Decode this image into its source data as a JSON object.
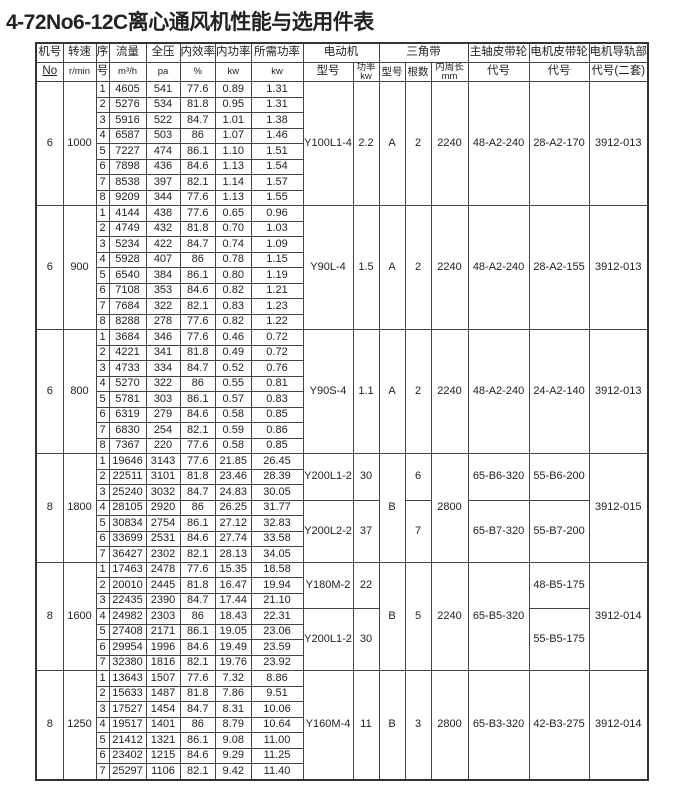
{
  "title": "4-72No6-12C离心通风机性能与选用件表",
  "headers": {
    "fan_no": [
      "机号",
      "No"
    ],
    "speed": [
      "转速",
      "r/min"
    ],
    "seq": [
      "序",
      "号"
    ],
    "flow": [
      "流量",
      "m³/h"
    ],
    "pressure": [
      "全压",
      "pa"
    ],
    "eff": [
      "内效率",
      "%"
    ],
    "power": [
      "内功率",
      "kw"
    ],
    "req": [
      "所需功率",
      "kw"
    ],
    "motor": "电动机",
    "motor_model": "型号",
    "motor_kw": [
      "功率",
      "kw"
    ],
    "vbelt": "三角带",
    "belt_type": "型号",
    "belt_count": "根数",
    "belt_length": [
      "内周长",
      "mm"
    ],
    "main_pulley": [
      "主轴皮带轮",
      "代号"
    ],
    "motor_pulley": [
      "电机皮带轮",
      "代号"
    ],
    "rail": [
      "电机导轨部",
      "代号(二套)"
    ]
  },
  "groups": [
    {
      "fan_no": "6",
      "speed": "1000",
      "rows": [
        [
          "1",
          "4605",
          "541",
          "77.6",
          "0.89",
          "1.31"
        ],
        [
          "2",
          "5276",
          "534",
          "81.8",
          "0.95",
          "1.31"
        ],
        [
          "3",
          "5916",
          "522",
          "84.7",
          "1.01",
          "1.38"
        ],
        [
          "4",
          "6587",
          "503",
          "86",
          "1.07",
          "1.46"
        ],
        [
          "5",
          "7227",
          "474",
          "86.1",
          "1.10",
          "1.51"
        ],
        [
          "6",
          "7898",
          "436",
          "84.6",
          "1.13",
          "1.54"
        ],
        [
          "7",
          "8538",
          "397",
          "82.1",
          "1.14",
          "1.57"
        ],
        [
          "8",
          "9209",
          "344",
          "77.6",
          "1.13",
          "1.55"
        ]
      ],
      "right": {
        "motor_model": [
          {
            "v": "Y100L1-4",
            "span": 8
          }
        ],
        "motor_kw": [
          {
            "v": "2.2",
            "span": 8
          }
        ],
        "belt_type": [
          {
            "v": "A",
            "span": 8
          }
        ],
        "belt_count": [
          {
            "v": "2",
            "span": 8
          }
        ],
        "belt_length": [
          {
            "v": "2240",
            "span": 8
          }
        ],
        "main_pulley": [
          {
            "v": "48-A2-240",
            "span": 8
          }
        ],
        "motor_pulley": [
          {
            "v": "28-A2-170",
            "span": 8
          }
        ],
        "rail": [
          {
            "v": "3912-013",
            "span": 8
          }
        ]
      }
    },
    {
      "fan_no": "6",
      "speed": "900",
      "rows": [
        [
          "1",
          "4144",
          "438",
          "77.6",
          "0.65",
          "0.96"
        ],
        [
          "2",
          "4749",
          "432",
          "81.8",
          "0.70",
          "1.03"
        ],
        [
          "3",
          "5234",
          "422",
          "84.7",
          "0.74",
          "1.09"
        ],
        [
          "4",
          "5928",
          "407",
          "86",
          "0.78",
          "1.15"
        ],
        [
          "5",
          "6540",
          "384",
          "86.1",
          "0.80",
          "1.19"
        ],
        [
          "6",
          "7108",
          "353",
          "84.6",
          "0.82",
          "1.21"
        ],
        [
          "7",
          "7684",
          "322",
          "82.1",
          "0.83",
          "1.23"
        ],
        [
          "8",
          "8288",
          "278",
          "77.6",
          "0.82",
          "1.22"
        ]
      ],
      "right": {
        "motor_model": [
          {
            "v": "Y90L-4",
            "span": 8
          }
        ],
        "motor_kw": [
          {
            "v": "1.5",
            "span": 8
          }
        ],
        "belt_type": [
          {
            "v": "A",
            "span": 8
          }
        ],
        "belt_count": [
          {
            "v": "2",
            "span": 8
          }
        ],
        "belt_length": [
          {
            "v": "2240",
            "span": 8
          }
        ],
        "main_pulley": [
          {
            "v": "48-A2-240",
            "span": 8
          }
        ],
        "motor_pulley": [
          {
            "v": "28-A2-155",
            "span": 8
          }
        ],
        "rail": [
          {
            "v": "3912-013",
            "span": 8
          }
        ]
      }
    },
    {
      "fan_no": "6",
      "speed": "800",
      "rows": [
        [
          "1",
          "3684",
          "346",
          "77.6",
          "0.46",
          "0.72"
        ],
        [
          "2",
          "4221",
          "341",
          "81.8",
          "0.49",
          "0.72"
        ],
        [
          "3",
          "4733",
          "334",
          "84.7",
          "0.52",
          "0.76"
        ],
        [
          "4",
          "5270",
          "322",
          "86",
          "0.55",
          "0.81"
        ],
        [
          "5",
          "5781",
          "303",
          "86.1",
          "0.57",
          "0.83"
        ],
        [
          "6",
          "6319",
          "279",
          "84.6",
          "0.58",
          "0.85"
        ],
        [
          "7",
          "6830",
          "254",
          "82.1",
          "0.59",
          "0.86"
        ],
        [
          "8",
          "7367",
          "220",
          "77.6",
          "0.58",
          "0.85"
        ]
      ],
      "right": {
        "motor_model": [
          {
            "v": "Y90S-4",
            "span": 8
          }
        ],
        "motor_kw": [
          {
            "v": "1.1",
            "span": 8
          }
        ],
        "belt_type": [
          {
            "v": "A",
            "span": 8
          }
        ],
        "belt_count": [
          {
            "v": "2",
            "span": 8
          }
        ],
        "belt_length": [
          {
            "v": "2240",
            "span": 8
          }
        ],
        "main_pulley": [
          {
            "v": "48-A2-240",
            "span": 8
          }
        ],
        "motor_pulley": [
          {
            "v": "24-A2-140",
            "span": 8
          }
        ],
        "rail": [
          {
            "v": "3912-013",
            "span": 8
          }
        ]
      }
    },
    {
      "fan_no": "8",
      "speed": "1800",
      "rows": [
        [
          "1",
          "19646",
          "3143",
          "77.6",
          "21.85",
          "26.45"
        ],
        [
          "2",
          "22511",
          "3101",
          "81.8",
          "23.46",
          "28.39"
        ],
        [
          "3",
          "25240",
          "3032",
          "84.7",
          "24.83",
          "30.05"
        ],
        [
          "4",
          "28105",
          "2920",
          "86",
          "26.25",
          "31.77"
        ],
        [
          "5",
          "30834",
          "2754",
          "86.1",
          "27.12",
          "32.83"
        ],
        [
          "6",
          "33699",
          "2531",
          "84.6",
          "27.74",
          "33.58"
        ],
        [
          "7",
          "36427",
          "2302",
          "82.1",
          "28.13",
          "34.05"
        ]
      ],
      "right": {
        "motor_model": [
          {
            "v": "Y200L1-2",
            "span": 3
          },
          {
            "v": "Y200L2-2",
            "span": 4
          }
        ],
        "motor_kw": [
          {
            "v": "30",
            "span": 3
          },
          {
            "v": "37",
            "span": 4
          }
        ],
        "belt_type": [
          {
            "v": "B",
            "span": 7
          }
        ],
        "belt_count": [
          {
            "v": "6",
            "span": 3
          },
          {
            "v": "7",
            "span": 4
          }
        ],
        "belt_length": [
          {
            "v": "2800",
            "span": 7
          }
        ],
        "main_pulley": [
          {
            "v": "65-B6-320",
            "span": 3
          },
          {
            "v": "65-B7-320",
            "span": 4
          }
        ],
        "motor_pulley": [
          {
            "v": "55-B6-200",
            "span": 3
          },
          {
            "v": "55-B7-200",
            "span": 4
          }
        ],
        "rail": [
          {
            "v": "3912-015",
            "span": 7
          }
        ]
      }
    },
    {
      "fan_no": "8",
      "speed": "1600",
      "rows": [
        [
          "1",
          "17463",
          "2478",
          "77.6",
          "15.35",
          "18.58"
        ],
        [
          "2",
          "20010",
          "2445",
          "81.8",
          "16.47",
          "19.94"
        ],
        [
          "3",
          "22435",
          "2390",
          "84.7",
          "17.44",
          "21.10"
        ],
        [
          "4",
          "24982",
          "2303",
          "86",
          "18.43",
          "22.31"
        ],
        [
          "5",
          "27408",
          "2171",
          "86.1",
          "19.05",
          "23.06"
        ],
        [
          "6",
          "29954",
          "1996",
          "84.6",
          "19.49",
          "23.59"
        ],
        [
          "7",
          "32380",
          "1816",
          "82.1",
          "19.76",
          "23.92"
        ]
      ],
      "right": {
        "motor_model": [
          {
            "v": "Y180M-2",
            "span": 3
          },
          {
            "v": "Y200L1-2",
            "span": 4
          }
        ],
        "motor_kw": [
          {
            "v": "22",
            "span": 3
          },
          {
            "v": "30",
            "span": 4
          }
        ],
        "belt_type": [
          {
            "v": "B",
            "span": 7
          }
        ],
        "belt_count": [
          {
            "v": "5",
            "span": 7
          }
        ],
        "belt_length": [
          {
            "v": "2240",
            "span": 7
          }
        ],
        "main_pulley": [
          {
            "v": "65-B5-320",
            "span": 7
          }
        ],
        "motor_pulley": [
          {
            "v": "48-B5-175",
            "span": 3
          },
          {
            "v": "55-B5-175",
            "span": 4
          }
        ],
        "rail": [
          {
            "v": "3912-014",
            "span": 7
          }
        ]
      }
    },
    {
      "fan_no": "8",
      "speed": "1250",
      "rows": [
        [
          "1",
          "13643",
          "1507",
          "77.6",
          "7.32",
          "8.86"
        ],
        [
          "2",
          "15633",
          "1487",
          "81.8",
          "7.86",
          "9.51"
        ],
        [
          "3",
          "17527",
          "1454",
          "84.7",
          "8.31",
          "10.06"
        ],
        [
          "4",
          "19517",
          "1401",
          "86",
          "8.79",
          "10.64"
        ],
        [
          "5",
          "21412",
          "1321",
          "86.1",
          "9.08",
          "11.00"
        ],
        [
          "6",
          "23402",
          "1215",
          "84.6",
          "9.29",
          "11.25"
        ],
        [
          "7",
          "25297",
          "1106",
          "82.1",
          "9.42",
          "11.40"
        ]
      ],
      "right": {
        "motor_model": [
          {
            "v": "Y160M-4",
            "span": 7
          }
        ],
        "motor_kw": [
          {
            "v": "11",
            "span": 7
          }
        ],
        "belt_type": [
          {
            "v": "B",
            "span": 7
          }
        ],
        "belt_count": [
          {
            "v": "3",
            "span": 7
          }
        ],
        "belt_length": [
          {
            "v": "2800",
            "span": 7
          }
        ],
        "main_pulley": [
          {
            "v": "65-B3-320",
            "span": 7
          }
        ],
        "motor_pulley": [
          {
            "v": "42-B3-275",
            "span": 7
          }
        ],
        "rail": [
          {
            "v": "3912-014",
            "span": 7
          }
        ]
      }
    }
  ]
}
